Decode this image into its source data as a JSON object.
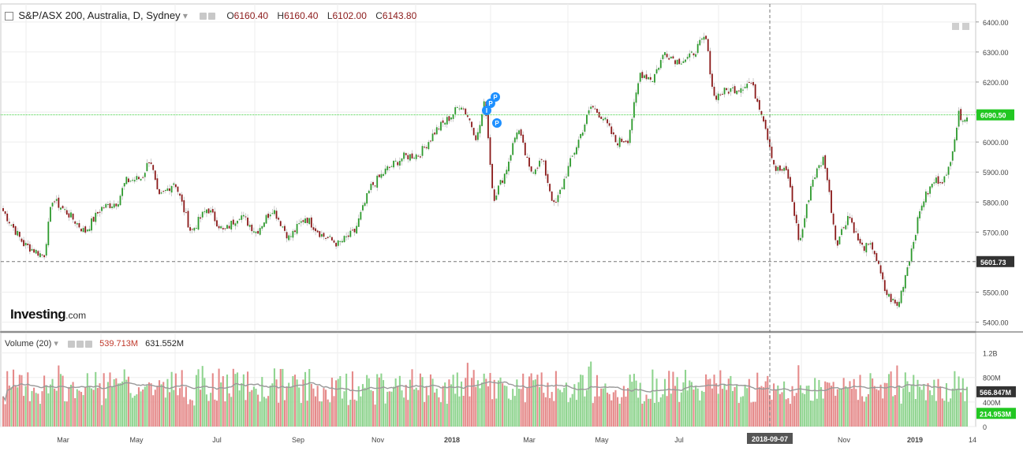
{
  "header": {
    "symbol": "S&P/ASX 200, Australia, D, Sydney",
    "open_label": "O",
    "open": "6160.40",
    "high_label": "H",
    "high": "6160.40",
    "low_label": "L",
    "low": "6102.00",
    "close_label": "C",
    "close": "6143.80"
  },
  "volume_header": {
    "label": "Volume (20)",
    "value1": "539.713M",
    "value2": "631.552M"
  },
  "logo": {
    "main": "Investing",
    "suffix": ".com"
  },
  "colors": {
    "up": "#2e9a2e",
    "down": "#8b1a1a",
    "vol_up": "#8fd48f",
    "vol_down": "#e58a8a",
    "price_line": "#22c722",
    "ma_line": "#999999"
  },
  "chart_data": {
    "type": "candlestick",
    "price_axis": {
      "ticks": [
        6400,
        6300,
        6200,
        6100,
        6000,
        5900,
        5800,
        5700,
        5600,
        5500,
        5400
      ],
      "tick_labels": [
        "6400.00",
        "6300.00",
        "6200.00",
        "6100.00",
        "6000.00",
        "5900.00",
        "5800.00",
        "5700.00",
        "5500.00",
        "5400.00"
      ],
      "range": [
        5370,
        6460
      ]
    },
    "volume_axis": {
      "tick_labels": [
        "1.2B",
        "800M",
        "400M",
        "0"
      ],
      "range": [
        0,
        1400
      ]
    },
    "x_axis": {
      "labels": [
        "Mar",
        "May",
        "Jul",
        "Sep",
        "Nov",
        "2018",
        "Mar",
        "May",
        "Jul",
        "Nov",
        "2019",
        "14"
      ],
      "crosshair_label": "2018-09-07"
    },
    "current_price": {
      "value": 6090.5,
      "label": "6090.50"
    },
    "crosshair_price": {
      "value": 5601.73,
      "label": "5601.73"
    },
    "volume_labels": {
      "ma": "566.847M",
      "last": "214.953M"
    },
    "price_path": [
      [
        0,
        5770
      ],
      [
        5,
        5660
      ],
      [
        10,
        5620
      ],
      [
        12,
        5810
      ],
      [
        16,
        5760
      ],
      [
        20,
        5700
      ],
      [
        24,
        5780
      ],
      [
        28,
        5800
      ],
      [
        30,
        5870
      ],
      [
        34,
        5880
      ],
      [
        36,
        5950
      ],
      [
        38,
        5810
      ],
      [
        42,
        5870
      ],
      [
        46,
        5700
      ],
      [
        50,
        5780
      ],
      [
        54,
        5700
      ],
      [
        58,
        5760
      ],
      [
        62,
        5700
      ],
      [
        66,
        5780
      ],
      [
        70,
        5680
      ],
      [
        74,
        5750
      ],
      [
        78,
        5690
      ],
      [
        82,
        5660
      ],
      [
        86,
        5700
      ],
      [
        90,
        5850
      ],
      [
        94,
        5910
      ],
      [
        98,
        5950
      ],
      [
        102,
        5960
      ],
      [
        106,
        6040
      ],
      [
        110,
        6090
      ],
      [
        112,
        6130
      ],
      [
        114,
        6080
      ],
      [
        116,
        6010
      ],
      [
        118,
        6140
      ],
      [
        120,
        5810
      ],
      [
        123,
        5900
      ],
      [
        126,
        6050
      ],
      [
        129,
        5900
      ],
      [
        132,
        5940
      ],
      [
        135,
        5780
      ],
      [
        138,
        5900
      ],
      [
        141,
        6010
      ],
      [
        144,
        6120
      ],
      [
        147,
        6080
      ],
      [
        150,
        6000
      ],
      [
        153,
        6010
      ],
      [
        156,
        6230
      ],
      [
        159,
        6210
      ],
      [
        162,
        6300
      ],
      [
        165,
        6270
      ],
      [
        168,
        6280
      ],
      [
        172,
        6350
      ],
      [
        174,
        6150
      ],
      [
        177,
        6170
      ],
      [
        180,
        6180
      ],
      [
        183,
        6200
      ],
      [
        186,
        6090
      ],
      [
        189,
        5910
      ],
      [
        192,
        5900
      ],
      [
        195,
        5660
      ],
      [
        198,
        5870
      ],
      [
        201,
        5950
      ],
      [
        204,
        5660
      ],
      [
        207,
        5760
      ],
      [
        210,
        5650
      ],
      [
        213,
        5650
      ],
      [
        216,
        5500
      ],
      [
        219,
        5450
      ],
      [
        222,
        5620
      ],
      [
        225,
        5800
      ],
      [
        228,
        5870
      ],
      [
        231,
        5880
      ],
      [
        234,
        6090
      ],
      [
        236,
        6080
      ]
    ],
    "volume_profile": [
      560,
      540,
      600,
      520,
      580,
      610,
      530,
      640,
      560,
      600,
      520,
      570,
      630,
      600,
      540,
      650,
      700,
      560,
      520,
      610,
      590,
      540,
      620,
      560,
      600,
      530,
      580,
      650,
      560,
      610
    ]
  }
}
